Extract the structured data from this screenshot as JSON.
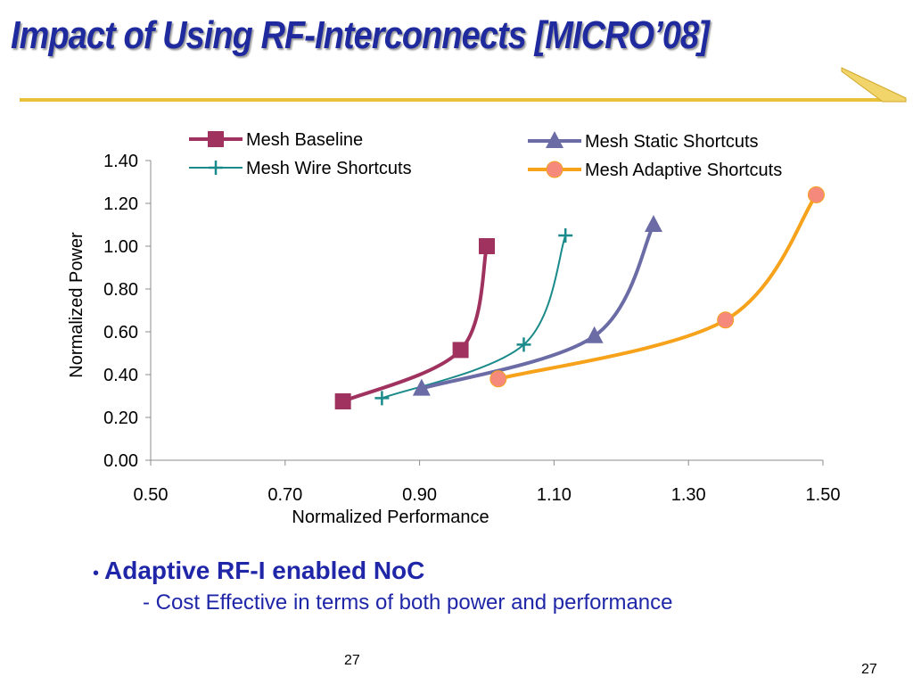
{
  "slide": {
    "title": "Impact of Using RF-Interconnects [MICRO’08]",
    "bullet": "Adaptive RF-I enabled NoC",
    "bullet_symbol": "•",
    "sub_bullet": "- Cost Effective in terms of both power and performance",
    "page_number_center": "27",
    "page_number_right": "27",
    "title_color": "#1f2a9e",
    "text_color": "#1f26a8",
    "rule_color": "#e8c13a"
  },
  "chart_data": {
    "type": "line",
    "xlabel": "Normalized Performance",
    "ylabel": "Normalized Power",
    "xlim": [
      0.5,
      1.5
    ],
    "ylim": [
      0.0,
      1.4
    ],
    "xticks": [
      "0.50",
      "0.70",
      "0.90",
      "1.10",
      "1.30",
      "1.50"
    ],
    "yticks": [
      "0.00",
      "0.20",
      "0.40",
      "0.60",
      "0.80",
      "1.00",
      "1.20",
      "1.40"
    ],
    "grid": false,
    "legend_position": "top",
    "series": [
      {
        "name": "Mesh Baseline",
        "color": "#a0325f",
        "marker": "square",
        "x": [
          0.786,
          0.961,
          1.0
        ],
        "y": [
          0.275,
          0.515,
          1.0
        ]
      },
      {
        "name": "Mesh Wire Shortcuts",
        "color": "#1a8a8a",
        "marker": "plus",
        "x": [
          0.844,
          1.055,
          1.117
        ],
        "y": [
          0.29,
          0.54,
          1.05
        ]
      },
      {
        "name": "Mesh Static Shortcuts",
        "color": "#6b6ba6",
        "marker": "triangle",
        "x": [
          0.903,
          1.16,
          1.248
        ],
        "y": [
          0.335,
          0.58,
          1.1
        ]
      },
      {
        "name": "Mesh Adaptive Shortcuts",
        "color": "#f7a21b",
        "marker_color": "#f58a7c",
        "marker": "circle",
        "x": [
          1.017,
          1.355,
          1.49
        ],
        "y": [
          0.38,
          0.655,
          1.24
        ]
      }
    ]
  }
}
